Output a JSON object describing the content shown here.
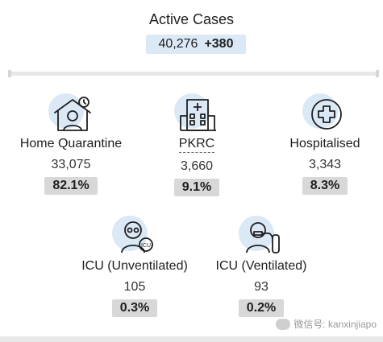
{
  "header": {
    "title": "Active Cases",
    "total": "40,276",
    "change": "+380"
  },
  "categories": [
    {
      "label": "Home Quarantine",
      "count": "33,075",
      "percent": "82.1%",
      "icon": "home-quarantine-icon"
    },
    {
      "label": "PKRC",
      "count": "3,660",
      "percent": "9.1%",
      "icon": "hospital-building-icon"
    },
    {
      "label": "Hospitalised",
      "count": "3,343",
      "percent": "8.3%",
      "icon": "medical-cross-icon"
    },
    {
      "label": "ICU (Unventilated)",
      "count": "105",
      "percent": "0.3%",
      "icon": "icu-doctor-icon"
    },
    {
      "label": "ICU (Ventilated)",
      "count": "93",
      "percent": "0.2%",
      "icon": "ventilator-patient-icon"
    }
  ],
  "watermark": {
    "text": "微信号: kanxinjiapo"
  },
  "colors": {
    "accent_bg": "#dbe8f6",
    "pct_bg": "#d8d8d8"
  }
}
